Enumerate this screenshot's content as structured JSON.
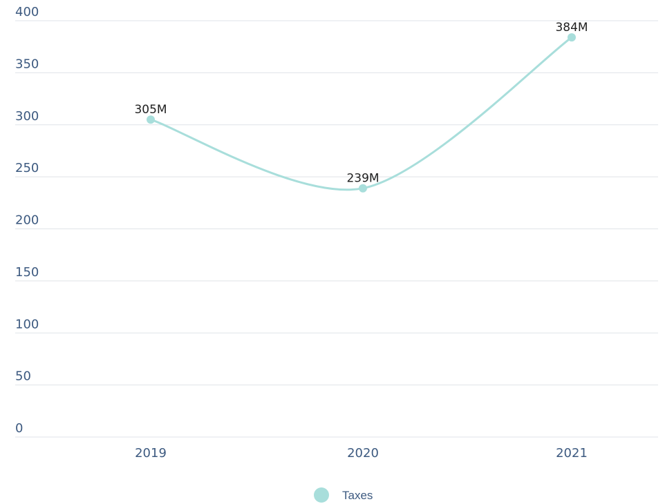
{
  "chart_data": {
    "type": "line",
    "categories": [
      "2019",
      "2020",
      "2021"
    ],
    "series": [
      {
        "name": "Taxes",
        "values": [
          305,
          239,
          384
        ],
        "labels": [
          "305M",
          "239M",
          "384M"
        ],
        "color": "#a8dedb"
      }
    ],
    "yticks": [
      "0",
      "50",
      "100",
      "150",
      "200",
      "250",
      "300",
      "350",
      "400"
    ],
    "ylim": [
      0,
      400
    ],
    "grid": true,
    "smooth": true,
    "legend": "bottom-center"
  }
}
